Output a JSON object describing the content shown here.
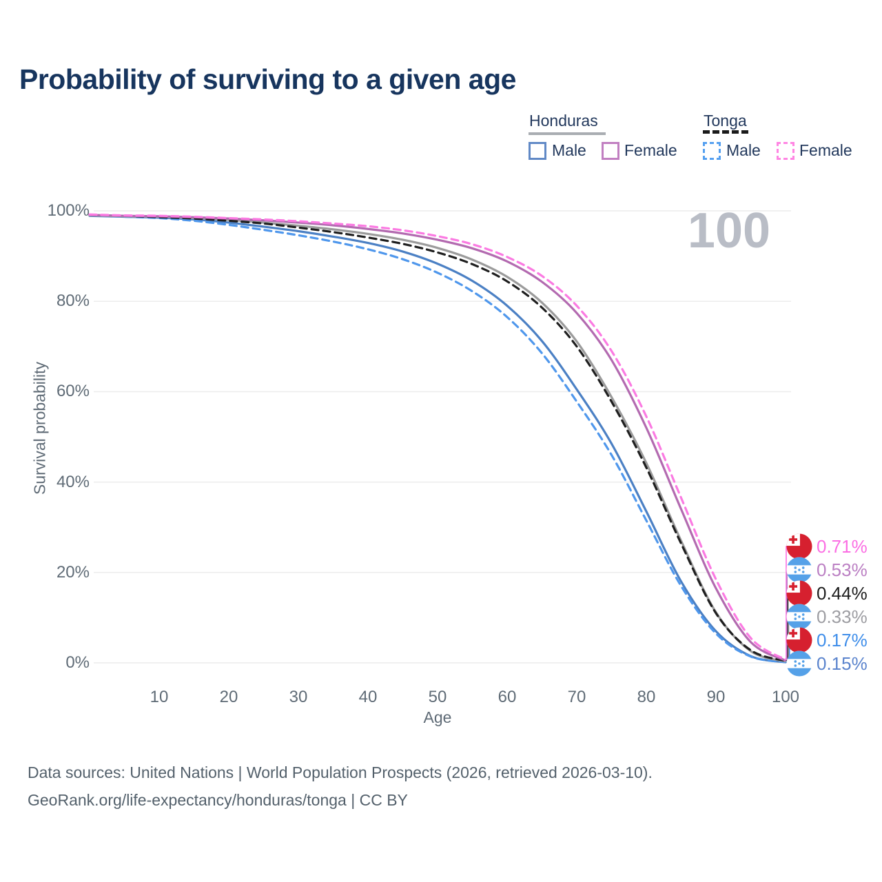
{
  "title": "Probability of surviving to a given age",
  "watermark": "100",
  "legend": {
    "groups": [
      {
        "name": "Honduras",
        "line_style": "solid",
        "line_color": "#a9adb2",
        "items": [
          {
            "label": "Male",
            "color": "#6189c6",
            "style": "solid"
          },
          {
            "label": "Female",
            "color": "#c17fc1",
            "style": "solid"
          }
        ]
      },
      {
        "name": "Tonga",
        "line_style": "dashed",
        "line_color": "#1a1a1a",
        "items": [
          {
            "label": "Male",
            "color": "#55a0f0",
            "style": "dashed"
          },
          {
            "label": "Female",
            "color": "#ff85e3",
            "style": "dashed"
          }
        ]
      }
    ]
  },
  "chart_data": {
    "type": "line",
    "title": "Probability of surviving to a given age",
    "xlabel": "Age",
    "ylabel": "Survival probability",
    "xlim": [
      0,
      100
    ],
    "ylim": [
      0,
      100
    ],
    "grid": "horizontal",
    "x_ticks": [
      10,
      20,
      30,
      40,
      50,
      60,
      70,
      80,
      90,
      100
    ],
    "y_ticks": [
      0,
      20,
      40,
      60,
      80,
      100
    ],
    "y_tick_suffix": "%",
    "x": [
      0,
      5,
      10,
      15,
      20,
      25,
      30,
      35,
      40,
      45,
      50,
      55,
      60,
      65,
      70,
      75,
      80,
      85,
      90,
      95,
      100
    ],
    "series": [
      {
        "name": "Honduras Male",
        "country": "Honduras",
        "sex": "male",
        "color": "#4b80c4",
        "dash": "solid",
        "values": [
          98.9,
          98.7,
          98.5,
          98.1,
          97.4,
          96.5,
          95.5,
          94.3,
          92.9,
          91.0,
          88.3,
          84.5,
          79.0,
          71.2,
          60.5,
          48.5,
          33.5,
          18.0,
          7.0,
          1.5,
          0.15
        ]
      },
      {
        "name": "Tonga Male",
        "country": "Tonga",
        "sex": "male",
        "color": "#4f97ec",
        "dash": "dashed",
        "values": [
          99.0,
          98.7,
          98.4,
          97.8,
          96.9,
          95.8,
          94.6,
          93.2,
          91.5,
          89.3,
          86.3,
          82.2,
          76.5,
          68.5,
          57.8,
          46.0,
          31.5,
          17.0,
          6.5,
          1.4,
          0.17
        ]
      },
      {
        "name": "Honduras",
        "country": "Honduras",
        "sex": "both",
        "color": "#9b9b9b",
        "dash": "solid",
        "values": [
          99.0,
          98.8,
          98.7,
          98.4,
          98.0,
          97.4,
          96.7,
          95.9,
          94.9,
          93.6,
          91.8,
          89.2,
          85.4,
          79.7,
          71.1,
          58.8,
          44.2,
          27.0,
          11.2,
          2.6,
          0.33
        ]
      },
      {
        "name": "Tonga",
        "country": "Tonga",
        "sex": "both",
        "color": "#1f1f1f",
        "dash": "dashed",
        "values": [
          99.1,
          98.9,
          98.6,
          98.3,
          97.8,
          97.2,
          96.3,
          95.3,
          94.1,
          92.7,
          90.8,
          88.2,
          84.4,
          78.6,
          70.0,
          57.8,
          43.2,
          26.4,
          11.0,
          2.8,
          0.44
        ]
      },
      {
        "name": "Honduras Female",
        "country": "Honduras",
        "sex": "female",
        "color": "#b36ab0",
        "dash": "solid",
        "values": [
          99.1,
          98.9,
          98.8,
          98.6,
          98.3,
          97.9,
          97.4,
          96.8,
          96.0,
          95.0,
          93.6,
          91.7,
          88.8,
          84.3,
          77.4,
          67.0,
          52.0,
          34.0,
          16.5,
          4.6,
          0.53
        ]
      },
      {
        "name": "Tonga Female",
        "country": "Tonga",
        "sex": "female",
        "color": "#fb7ae2",
        "dash": "dashed",
        "values": [
          99.2,
          99.0,
          98.9,
          98.7,
          98.4,
          98.1,
          97.7,
          97.2,
          96.6,
          95.7,
          94.4,
          92.6,
          89.8,
          85.6,
          79.0,
          69.0,
          54.5,
          36.5,
          18.5,
          5.5,
          0.71
        ]
      }
    ],
    "end_labels": [
      {
        "value": "0.71%",
        "series": "Tonga Female",
        "flag": "tonga",
        "color": "#fb6ee3"
      },
      {
        "value": "0.53%",
        "series": "Honduras Female",
        "flag": "honduras",
        "color": "#bb7fc3"
      },
      {
        "value": "0.44%",
        "series": "Tonga",
        "flag": "tonga",
        "color": "#1d1d1d"
      },
      {
        "value": "0.33%",
        "series": "Honduras",
        "flag": "honduras",
        "color": "#9d9da2"
      },
      {
        "value": "0.17%",
        "series": "Tonga Male",
        "flag": "tonga",
        "color": "#3f8eea"
      },
      {
        "value": "0.15%",
        "series": "Honduras Male",
        "flag": "honduras",
        "color": "#5b84cd"
      }
    ],
    "annotation_max_age": "100"
  },
  "footer": {
    "line1": "Data sources: United Nations | World Population Prospects (2026, retrieved 2026-03-10).",
    "line2": "GeoRank.org/life-expectancy/honduras/tonga | CC BY"
  }
}
